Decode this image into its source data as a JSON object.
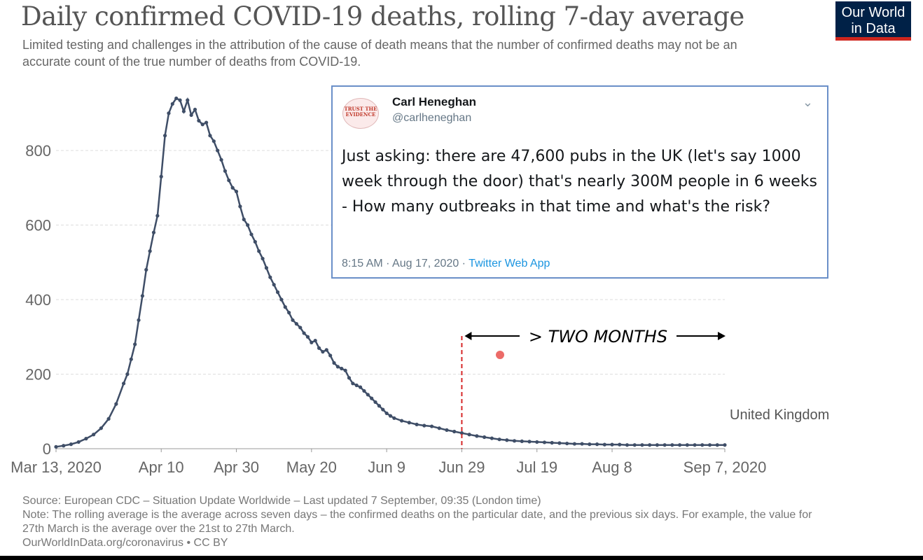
{
  "header": {
    "title": "Daily confirmed COVID-19 deaths, rolling 7-day average",
    "subtitle": "Limited testing and challenges in the attribution of the cause of death means that the number of confirmed deaths may not be an accurate count of the true number of deaths from COVID-19.",
    "logo_line1": "Our World",
    "logo_line2": "in Data"
  },
  "colors": {
    "line": "#3f4e67",
    "grid": "#dddddd",
    "marker": "#d62728",
    "logo_bg": "#002147",
    "logo_accent": "#ce261e"
  },
  "chart_data": {
    "type": "line",
    "title": "Daily confirmed COVID-19 deaths, rolling 7-day average",
    "xlabel": "",
    "ylabel": "",
    "ylim": [
      0,
      950
    ],
    "y_ticks": [
      0,
      200,
      400,
      600,
      800
    ],
    "x_tick_labels": [
      "Mar 13, 2020",
      "Apr 10",
      "Apr 30",
      "May 20",
      "Jun 9",
      "Jun 29",
      "Jul 19",
      "Aug 8",
      "Sep 7, 2020"
    ],
    "x_tick_days": [
      0,
      28,
      48,
      68,
      88,
      108,
      128,
      148,
      178
    ],
    "grid": "horizontal dashed",
    "series": [
      {
        "name": "United Kingdom",
        "x_days": [
          0,
          2,
          4,
          6,
          8,
          10,
          12,
          14,
          16,
          18,
          19,
          20,
          21,
          22,
          23,
          24,
          25,
          26,
          27,
          28,
          29,
          30,
          31,
          32,
          33,
          34,
          35,
          36,
          37,
          38,
          39,
          40,
          41,
          42,
          43,
          44,
          45,
          46,
          47,
          48,
          49,
          50,
          51,
          52,
          53,
          54,
          55,
          56,
          57,
          58,
          59,
          60,
          61,
          62,
          63,
          64,
          65,
          66,
          67,
          68,
          69,
          70,
          71,
          72,
          73,
          74,
          75,
          76,
          77,
          78,
          79,
          80,
          81,
          82,
          83,
          84,
          85,
          86,
          87,
          88,
          89,
          90,
          92,
          94,
          96,
          98,
          100,
          102,
          104,
          106,
          108,
          110,
          112,
          114,
          116,
          118,
          120,
          122,
          124,
          126,
          128,
          130,
          132,
          134,
          136,
          138,
          140,
          142,
          144,
          146,
          148,
          150,
          152,
          154,
          156,
          158,
          160,
          162,
          164,
          166,
          168,
          170,
          172,
          174,
          176,
          178
        ],
        "values": [
          5,
          8,
          12,
          18,
          27,
          38,
          55,
          80,
          120,
          175,
          200,
          240,
          280,
          345,
          410,
          480,
          530,
          580,
          625,
          730,
          840,
          900,
          925,
          940,
          935,
          905,
          935,
          895,
          910,
          880,
          870,
          875,
          840,
          825,
          800,
          775,
          745,
          720,
          700,
          690,
          650,
          615,
          600,
          575,
          555,
          530,
          510,
          485,
          460,
          440,
          420,
          400,
          380,
          365,
          345,
          335,
          325,
          310,
          300,
          285,
          290,
          270,
          260,
          265,
          250,
          230,
          220,
          215,
          210,
          190,
          175,
          170,
          165,
          155,
          145,
          135,
          125,
          115,
          105,
          95,
          88,
          82,
          75,
          70,
          65,
          62,
          60,
          55,
          50,
          46,
          42,
          38,
          34,
          31,
          28,
          25,
          23,
          21,
          20,
          19,
          18,
          17,
          16,
          15,
          14,
          13,
          13,
          12,
          12,
          11,
          11,
          11,
          10,
          10,
          10,
          10,
          10,
          10,
          10,
          10,
          10,
          10,
          10,
          10,
          10,
          10
        ]
      }
    ],
    "series_label": "United Kingdom",
    "annotation": {
      "text": "> TWO MONTHS",
      "marker_day": 108
    }
  },
  "tweet": {
    "author": "Carl Heneghan",
    "handle": "@carlheneghan",
    "avatar_text": "TRUST THE EVIDENCE",
    "text": "Just asking: there are 47,600 pubs in the UK (let's say 1000 week through the door) that's nearly 300M people in 6 weeks - How many outbreaks in that time and what's the risk?",
    "time": "8:15 AM · Aug 17, 2020 · ",
    "app": "Twitter Web App",
    "chevron_icon": "chevron-down-icon"
  },
  "footer": {
    "source": "Source: European CDC – Situation Update Worldwide – Last updated 7 September, 09:35 (London time)",
    "note": "Note: The rolling average is the average across seven days – the confirmed deaths on the particular date, and the previous six days. For example, the value for 27th March is the average over the 21st to 27th March.",
    "link": "OurWorldInData.org/coronavirus • CC BY"
  }
}
